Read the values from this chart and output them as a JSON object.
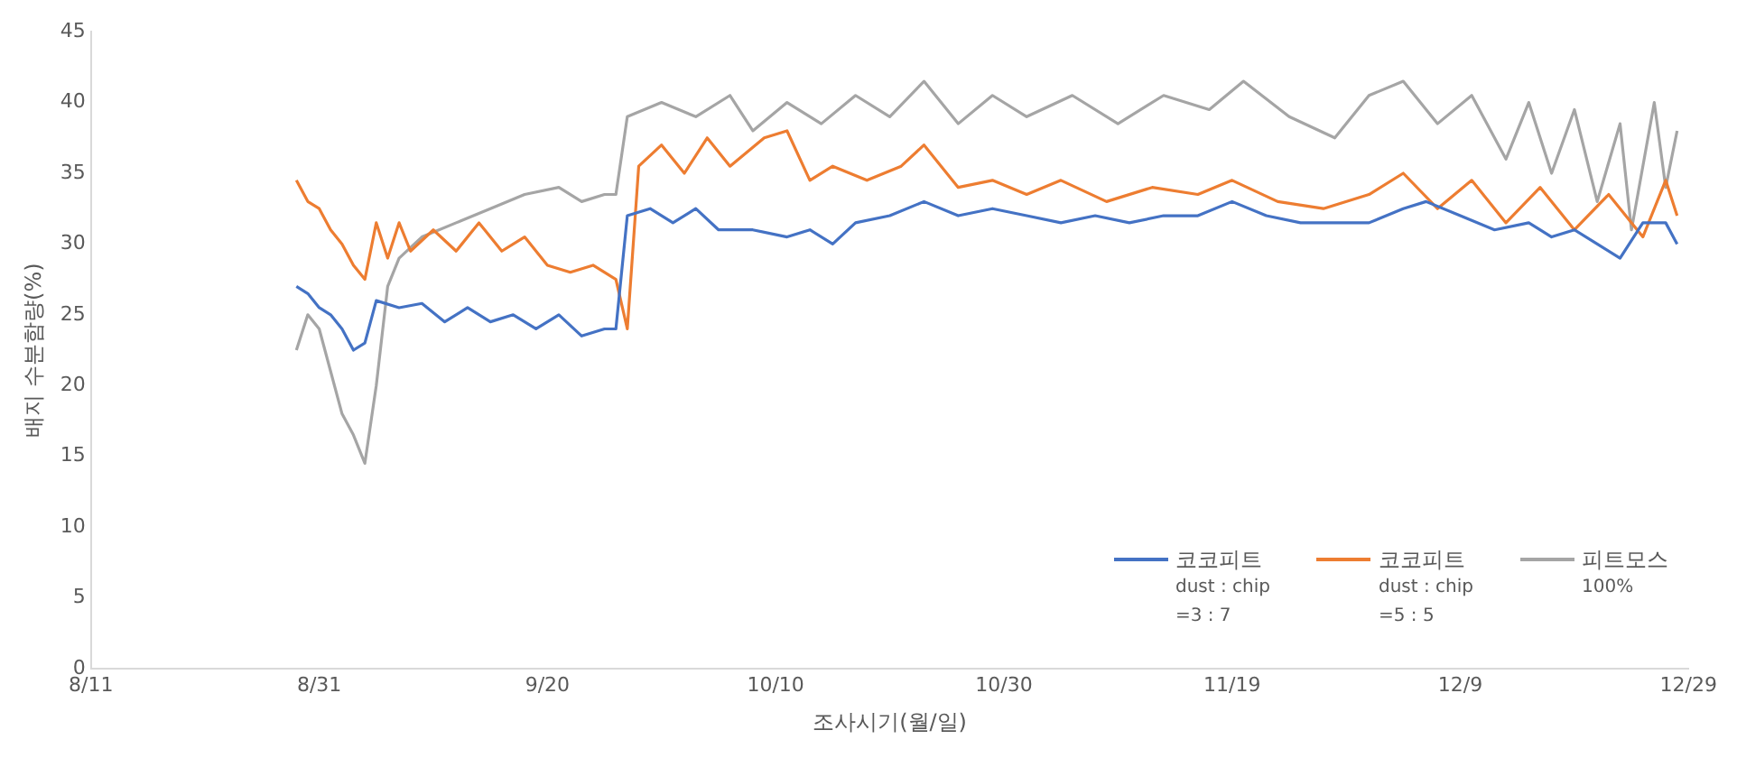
{
  "chart_data": {
    "type": "line",
    "xlabel": "조사시기(월/일)",
    "ylabel": "배지 수분함량(%)",
    "xlim": [
      "--08-11",
      "--12-29"
    ],
    "xticks": [
      {
        "value": "--08-11",
        "label": "8/11"
      },
      {
        "value": "--08-31",
        "label": "8/31"
      },
      {
        "value": "--09-20",
        "label": "9/20"
      },
      {
        "value": "--10-10",
        "label": "10/10"
      },
      {
        "value": "--10-30",
        "label": "10/30"
      },
      {
        "value": "--11-19",
        "label": "11/19"
      },
      {
        "value": "--12-09",
        "label": "12/9"
      },
      {
        "value": "--12-29",
        "label": "12/29"
      }
    ],
    "ylim": [
      0,
      45
    ],
    "yticks": [
      0,
      5,
      10,
      15,
      20,
      25,
      30,
      35,
      40,
      45
    ],
    "grid": false,
    "legend": "bottom right",
    "marker": "none",
    "line_style": "solid",
    "series": [
      {
        "name": "코코피트\ndust : chip\n=3 : 7",
        "color": "#4472c4",
        "x": [
          "--08-29",
          "--08-30",
          "--08-31",
          "--09-01",
          "--09-02",
          "--09-03",
          "--09-04",
          "--09-05",
          "--09-07",
          "--09-09",
          "--09-11",
          "--09-13",
          "--09-15",
          "--09-17",
          "--09-19",
          "--09-21",
          "--09-23",
          "--09-25",
          "--09-26",
          "--09-27",
          "--09-29",
          "--10-01",
          "--10-03",
          "--10-05",
          "--10-08",
          "--10-11",
          "--10-13",
          "--10-15",
          "--10-17",
          "--10-20",
          "--10-23",
          "--10-26",
          "--10-29",
          "--11-01",
          "--11-04",
          "--11-07",
          "--11-10",
          "--11-13",
          "--11-16",
          "--11-19",
          "--11-22",
          "--11-25",
          "--11-28",
          "--12-01",
          "--12-04",
          "--12-06",
          "--12-09",
          "--12-12",
          "--12-15",
          "--12-17",
          "--12-19",
          "--12-21",
          "--12-23",
          "--12-25",
          "--12-27",
          "--12-28"
        ],
        "values": [
          27,
          26.5,
          25.5,
          25,
          24,
          22.5,
          23,
          26,
          25.5,
          25.8,
          24.5,
          25.5,
          24.5,
          25,
          24,
          25,
          23.5,
          24,
          24,
          32,
          32.5,
          31.5,
          32.5,
          31,
          31,
          30.5,
          31,
          30,
          31.5,
          32,
          33,
          32,
          32.5,
          32,
          31.5,
          32,
          31.5,
          32,
          32,
          33,
          32,
          31.5,
          31.5,
          31.5,
          32.5,
          33,
          32,
          31,
          31.5,
          30.5,
          31,
          30,
          29,
          31.5,
          31.5,
          30
        ]
      },
      {
        "name": "코코피트\ndust : chip\n=5 : 5",
        "color": "#ed7d31",
        "x": [
          "--08-29",
          "--08-30",
          "--08-31",
          "--09-01",
          "--09-02",
          "--09-03",
          "--09-04",
          "--09-05",
          "--09-06",
          "--09-07",
          "--09-08",
          "--09-10",
          "--09-12",
          "--09-14",
          "--09-16",
          "--09-18",
          "--09-20",
          "--09-22",
          "--09-24",
          "--09-26",
          "--09-27",
          "--09-28",
          "--09-30",
          "--10-02",
          "--10-04",
          "--10-06",
          "--10-09",
          "--10-11",
          "--10-13",
          "--10-15",
          "--10-18",
          "--10-21",
          "--10-23",
          "--10-26",
          "--10-29",
          "--11-01",
          "--11-04",
          "--11-08",
          "--11-12",
          "--11-16",
          "--11-19",
          "--11-23",
          "--11-27",
          "--12-01",
          "--12-04",
          "--12-07",
          "--12-10",
          "--12-13",
          "--12-16",
          "--12-19",
          "--12-22",
          "--12-25",
          "--12-27",
          "--12-28"
        ],
        "values": [
          34.5,
          33,
          32.5,
          31,
          30,
          28.5,
          27.5,
          31.5,
          29,
          31.5,
          29.5,
          31,
          29.5,
          31.5,
          29.5,
          30.5,
          28.5,
          28,
          28.5,
          27.5,
          24,
          35.5,
          37,
          35,
          37.5,
          35.5,
          37.5,
          38,
          34.5,
          35.5,
          34.5,
          35.5,
          37,
          34,
          34.5,
          33.5,
          34.5,
          33,
          34,
          33.5,
          34.5,
          33,
          32.5,
          33.5,
          35,
          32.5,
          34.5,
          31.5,
          34,
          31,
          33.5,
          30.5,
          34.5,
          32
        ]
      },
      {
        "name": "피트모스\n100%",
        "color": "#a5a5a5",
        "x": [
          "--08-29",
          "--08-30",
          "--08-31",
          "--09-01",
          "--09-02",
          "--09-03",
          "--09-04",
          "--09-05",
          "--09-06",
          "--09-07",
          "--09-09",
          "--09-12",
          "--09-15",
          "--09-18",
          "--09-21",
          "--09-23",
          "--09-25",
          "--09-26",
          "--09-27",
          "--09-30",
          "--10-03",
          "--10-06",
          "--10-08",
          "--10-11",
          "--10-14",
          "--10-17",
          "--10-20",
          "--10-23",
          "--10-26",
          "--10-29",
          "--11-01",
          "--11-05",
          "--11-09",
          "--11-13",
          "--11-17",
          "--11-20",
          "--11-24",
          "--11-28",
          "--12-01",
          "--12-04",
          "--12-07",
          "--12-10",
          "--12-13",
          "--12-15",
          "--12-17",
          "--12-19",
          "--12-21",
          "--12-23",
          "--12-24",
          "--12-26",
          "--12-27",
          "--12-28"
        ],
        "values": [
          22.5,
          25,
          24,
          21,
          18,
          16.5,
          14.5,
          20,
          27,
          29,
          30.5,
          31.5,
          32.5,
          33.5,
          34,
          33,
          33.5,
          33.5,
          39,
          40,
          39,
          40.5,
          38,
          40,
          38.5,
          40.5,
          39,
          41.5,
          38.5,
          40.5,
          39,
          40.5,
          38.5,
          40.5,
          39.5,
          41.5,
          39,
          37.5,
          40.5,
          41.5,
          38.5,
          40.5,
          36,
          40,
          35,
          39.5,
          33,
          38.5,
          31,
          40,
          34,
          38
        ]
      }
    ]
  }
}
